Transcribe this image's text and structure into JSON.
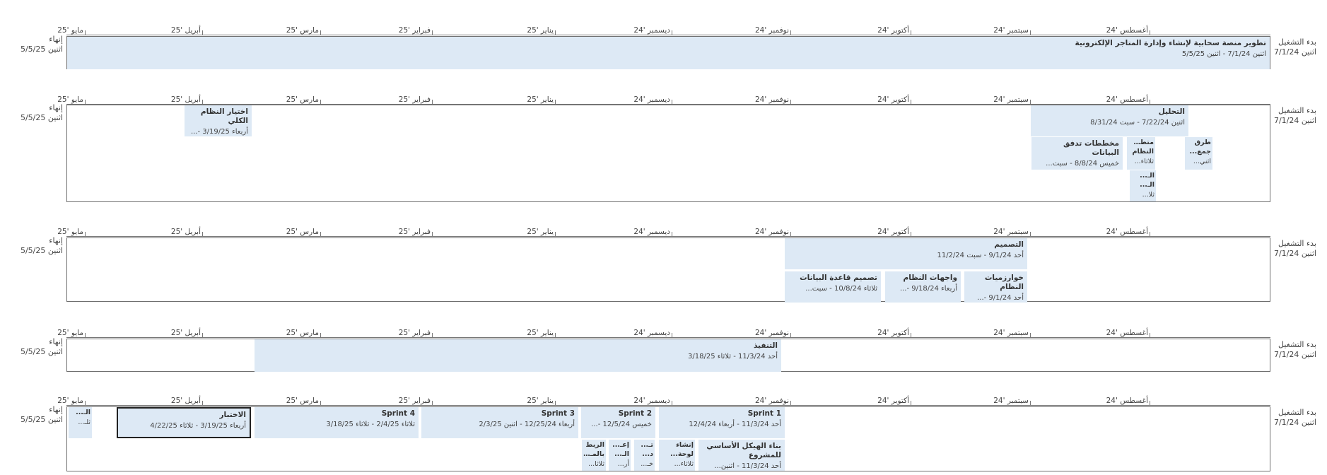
{
  "axis": {
    "months": [
      "مايو '25",
      "أبريل '25",
      "مارس '25",
      "فبراير '25",
      "يناير '25",
      "ديسمبر '24",
      "نوفمبر '24",
      "أكتوبر '24",
      "سبتمبر '24",
      "أغسطس '24"
    ]
  },
  "start_label": "بدء التشغيل",
  "start_date": "اثنين 7/1/24",
  "end_label": "إنهاء",
  "end_date": "اثنين 5/5/25",
  "rows": [
    {
      "tasks": [
        {
          "title": "تطوير منصة سحابية لإنشاء وإدارة المتاجر الإلكترونية",
          "dates": "اثنين 7/1/24 - اثنين 5/5/25"
        }
      ]
    },
    {
      "tasks": [
        {
          "title": "التحليل",
          "dates": "اثنين 7/22/24 - سبت 8/31/24"
        },
        {
          "title": "طرق جمع...",
          "dates": "اثني..."
        },
        {
          "title": "متطل... النظام",
          "dates": "ثلاثاء..."
        },
        {
          "title": "مخططات تدفق البيانات",
          "dates": "خميس 8/8/24 - سبت..."
        },
        {
          "title": "الـ... الـ...",
          "dates": "ثلا..."
        },
        {
          "title": "اختيار النظام الكلي",
          "dates": "أربعاء 3/19/25 -..."
        }
      ]
    },
    {
      "tasks": [
        {
          "title": "التصميم",
          "dates": "أحد 9/1/24 - سبت 11/2/24"
        },
        {
          "title": "خوارزميات النظام",
          "dates": "أحد 9/1/24 -..."
        },
        {
          "title": "واجهات النظام",
          "dates": "أربعاء 9/18/24 -..."
        },
        {
          "title": "تصميم قاعدة البيانات",
          "dates": "ثلاثاء 10/8/24 - سبت..."
        }
      ]
    },
    {
      "tasks": [
        {
          "title": "التنفيذ",
          "dates": "أحد 11/3/24 - ثلاثاء 3/18/25"
        }
      ]
    },
    {
      "tasks": [
        {
          "title": "Sprint 1",
          "dates": "أحد 11/3/24 - أربعاء 12/4/24"
        },
        {
          "title": "Sprint 2",
          "dates": "خميس 12/5/24 -..."
        },
        {
          "title": "Sprint 3",
          "dates": "أربعاء 12/25/24 - اثنين 2/3/25"
        },
        {
          "title": "Sprint 4",
          "dates": "ثلاثاء 2/4/25 - ثلاثاء 3/18/25"
        },
        {
          "title": "الاختبار",
          "dates": "أربعاء 3/19/25 - ثلاثاء 4/22/25"
        },
        {
          "title": "الـ...",
          "dates": "ثلـ..."
        },
        {
          "title": "بناء الهيكل الأساسي للمشروع",
          "dates": "أحد 11/3/24 - اثنين..."
        },
        {
          "title": "إنشاء لوحة...",
          "dates": "ثلاثاء..."
        },
        {
          "title": "تـ... د...",
          "dates": "خـ..."
        },
        {
          "title": "إعـ... الـ...",
          "dates": "أر..."
        },
        {
          "title": "الربط بالمـ...",
          "dates": "ثلاثا..."
        }
      ]
    }
  ]
}
